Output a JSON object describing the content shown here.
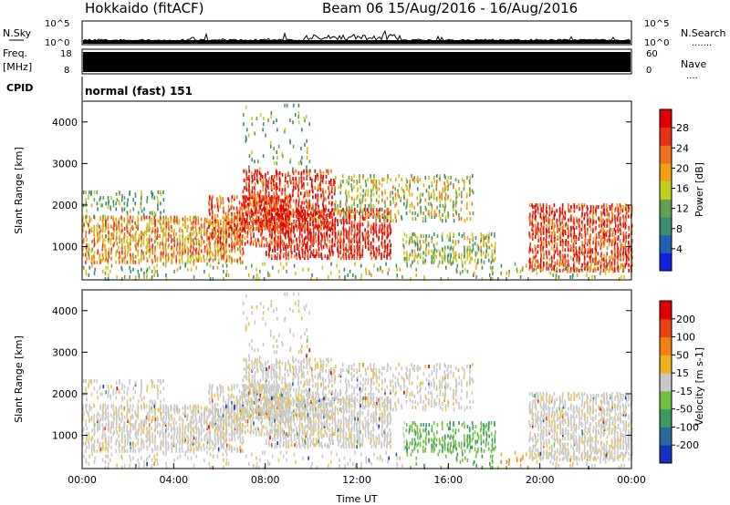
{
  "header": {
    "title": "Hokkaido (fitACF)",
    "beam_info": "Beam 06 15/Aug/2016 - 16/Aug/2016"
  },
  "status_panels": {
    "nsky": {
      "label": "N.Sky",
      "ticks": [
        "10^5",
        "10^0"
      ],
      "right_ticks": [
        "10^5",
        "10^0"
      ],
      "right_label": "N.Search",
      "right_dots": "......."
    },
    "freq": {
      "label_top": "Freq.",
      "label_bottom": "[MHz]",
      "ticks": [
        "18",
        "8"
      ],
      "right_ticks": [
        "60",
        "0"
      ],
      "right_label": "Nave",
      "right_dots": "...."
    },
    "cpid": {
      "label": "CPID",
      "mode_text": "normal (fast) 151"
    }
  },
  "chart_data": [
    {
      "type": "heatmap",
      "name": "power",
      "ylabel": "Slant Range [km]",
      "xlabel": "",
      "y_ticks": [
        "1000",
        "2000",
        "3000",
        "4000"
      ],
      "y_tick_values": [
        1000,
        2000,
        3000,
        4000
      ],
      "ylim": [
        200,
        4500
      ],
      "xlim": [
        0,
        24
      ],
      "colorbar": {
        "label": "Power [dB]",
        "ticks": [
          "4",
          "8",
          "12",
          "16",
          "20",
          "24",
          "28"
        ],
        "colors": [
          "#1020e0",
          "#2060b0",
          "#3c8a70",
          "#60a050",
          "#c0d020",
          "#f0a010",
          "#f07020",
          "#e83018",
          "#e00000"
        ]
      }
    },
    {
      "type": "heatmap",
      "name": "velocity",
      "ylabel": "Slant Range [km]",
      "xlabel": "Time UT",
      "y_ticks": [
        "1000",
        "2000",
        "3000",
        "4000"
      ],
      "y_tick_values": [
        1000,
        2000,
        3000,
        4000
      ],
      "ylim": [
        200,
        4500
      ],
      "xlim": [
        0,
        24
      ],
      "x_ticks": [
        "00:00",
        "04:00",
        "08:00",
        "12:00",
        "16:00",
        "20:00",
        "00:00"
      ],
      "x_tick_values": [
        0,
        4,
        8,
        12,
        16,
        20,
        24
      ],
      "colorbar": {
        "label": "Velocity [m s-1]",
        "ticks": [
          "200",
          "100",
          "50",
          "15",
          "-15",
          "-50",
          "-100",
          "-200"
        ],
        "colors": [
          "#1830c0",
          "#2a6a9a",
          "#3a9a60",
          "#70c040",
          "#c8c8c8",
          "#f0b020",
          "#f08010",
          "#e84010",
          "#e00000"
        ]
      }
    }
  ]
}
